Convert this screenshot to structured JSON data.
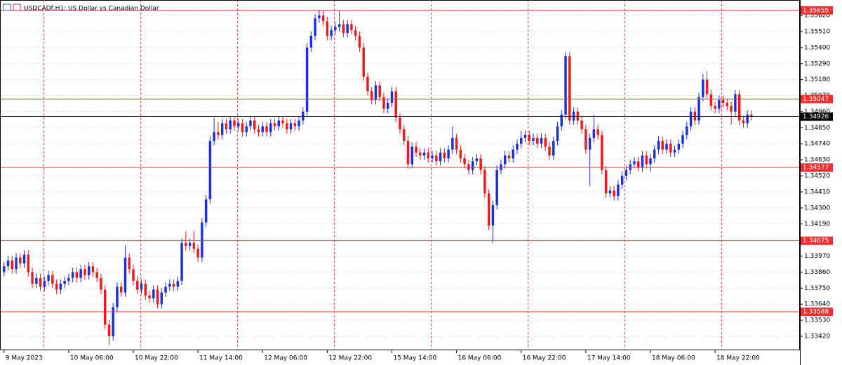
{
  "chart_data": {
    "type": "candlestick",
    "title": "USDCADf,H1:  US Dollar vs Canadian Dollar",
    "up_color": "#1a30e0",
    "down_color": "#f01818",
    "level_color": "#f03030",
    "price_color": "#000000",
    "ylim": [
      1.33324,
      1.35726
    ],
    "xlim": [
      -1,
      197
    ],
    "grid": true,
    "yticks": [
      {
        "value": 1.3562,
        "label": "1.35620"
      },
      {
        "value": 1.3551,
        "label": "1.35510"
      },
      {
        "value": 1.354,
        "label": "1.35400"
      },
      {
        "value": 1.3529,
        "label": "1.35290"
      },
      {
        "value": 1.3518,
        "label": "1.35180"
      },
      {
        "value": 1.3507,
        "label": "1.35070"
      },
      {
        "value": 1.3496,
        "label": "1.34960"
      },
      {
        "value": 1.3485,
        "label": "1.34850"
      },
      {
        "value": 1.3474,
        "label": "1.34740"
      },
      {
        "value": 1.3463,
        "label": "1.34630"
      },
      {
        "value": 1.3452,
        "label": "1.34520"
      },
      {
        "value": 1.3441,
        "label": "1.34410"
      },
      {
        "value": 1.343,
        "label": "1.34300"
      },
      {
        "value": 1.3419,
        "label": "1.34190"
      },
      {
        "value": 1.3408,
        "label": "1.34080"
      },
      {
        "value": 1.3397,
        "label": "1.33970"
      },
      {
        "value": 1.3386,
        "label": "1.33860"
      },
      {
        "value": 1.3375,
        "label": "1.33750"
      },
      {
        "value": 1.3364,
        "label": "1.33640"
      },
      {
        "value": 1.3353,
        "label": "1.33530"
      },
      {
        "value": 1.3342,
        "label": "1.33420"
      }
    ],
    "xticks": [
      {
        "value": 0,
        "label": "9 May 2023"
      },
      {
        "value": 16,
        "label": "10 May 06:00"
      },
      {
        "value": 32,
        "label": "10 May 22:00"
      },
      {
        "value": 48,
        "label": "11 May 14:00"
      },
      {
        "value": 64,
        "label": "12 May 06:00"
      },
      {
        "value": 80,
        "label": "12 May 22:00"
      },
      {
        "value": 96,
        "label": "15 May 14:00"
      },
      {
        "value": 112,
        "label": "16 May 06:00"
      },
      {
        "value": 128,
        "label": "16 May 22:00"
      },
      {
        "value": 144,
        "label": "17 May 14:00"
      },
      {
        "value": 160,
        "label": "18 May 06:00"
      },
      {
        "value": 176,
        "label": "18 May 22:00"
      }
    ],
    "levels": [
      1.35655,
      1.35047,
      1.34577,
      1.34075,
      1.33588
    ],
    "current_price": 1.34926,
    "candles": [
      [
        1.3386,
        1.3393,
        1.3383,
        1.339
      ],
      [
        1.339,
        1.3397,
        1.3387,
        1.3394
      ],
      [
        1.3394,
        1.3397,
        1.3385,
        1.3388
      ],
      [
        1.3388,
        1.3399,
        1.3385,
        1.3396
      ],
      [
        1.3396,
        1.3399,
        1.3389,
        1.3392
      ],
      [
        1.3392,
        1.3401,
        1.3389,
        1.3398
      ],
      [
        1.3398,
        1.3401,
        1.3383,
        1.3386
      ],
      [
        1.3386,
        1.3389,
        1.3375,
        1.3378
      ],
      [
        1.3378,
        1.3385,
        1.3375,
        1.3382
      ],
      [
        1.3382,
        1.3385,
        1.3373,
        1.3376
      ],
      [
        1.3376,
        1.3383,
        1.3373,
        1.338
      ],
      [
        1.338,
        1.3387,
        1.3377,
        1.3384
      ],
      [
        1.3384,
        1.3387,
        1.3375,
        1.3378
      ],
      [
        1.3378,
        1.3381,
        1.3371,
        1.3374
      ],
      [
        1.3374,
        1.3381,
        1.3371,
        1.3378
      ],
      [
        1.3378,
        1.3383,
        1.3375,
        1.338
      ],
      [
        1.338,
        1.3385,
        1.3377,
        1.3382
      ],
      [
        1.3382,
        1.3389,
        1.3379,
        1.3386
      ],
      [
        1.3386,
        1.3389,
        1.3379,
        1.3382
      ],
      [
        1.3382,
        1.3391,
        1.3379,
        1.3388
      ],
      [
        1.3388,
        1.3391,
        1.3381,
        1.3384
      ],
      [
        1.3384,
        1.3393,
        1.3381,
        1.339
      ],
      [
        1.339,
        1.3393,
        1.3383,
        1.3386
      ],
      [
        1.3386,
        1.3389,
        1.3379,
        1.3382
      ],
      [
        1.3382,
        1.3385,
        1.3371,
        1.3374
      ],
      [
        1.3374,
        1.3377,
        1.3347,
        1.335
      ],
      [
        1.335,
        1.3353,
        1.3336,
        1.3342
      ],
      [
        1.3342,
        1.3365,
        1.3339,
        1.3362
      ],
      [
        1.3362,
        1.3379,
        1.3359,
        1.3376
      ],
      [
        1.3376,
        1.3379,
        1.3369,
        1.3372
      ],
      [
        1.3372,
        1.3404,
        1.3369,
        1.3396
      ],
      [
        1.3396,
        1.3399,
        1.3385,
        1.3388
      ],
      [
        1.3388,
        1.3391,
        1.3377,
        1.338
      ],
      [
        1.338,
        1.3383,
        1.3371,
        1.3374
      ],
      [
        1.3374,
        1.3381,
        1.3371,
        1.3378
      ],
      [
        1.3378,
        1.3381,
        1.3367,
        1.337
      ],
      [
        1.337,
        1.3373,
        1.3365,
        1.3368
      ],
      [
        1.3368,
        1.3377,
        1.3365,
        1.3374
      ],
      [
        1.3374,
        1.3377,
        1.3361,
        1.3364
      ],
      [
        1.3364,
        1.3375,
        1.3361,
        1.3372
      ],
      [
        1.3372,
        1.3379,
        1.3369,
        1.3376
      ],
      [
        1.3376,
        1.3381,
        1.3373,
        1.3378
      ],
      [
        1.3378,
        1.3381,
        1.3373,
        1.3376
      ],
      [
        1.3376,
        1.3383,
        1.3373,
        1.338
      ],
      [
        1.338,
        1.3409,
        1.3377,
        1.3406
      ],
      [
        1.3406,
        1.3414,
        1.3401,
        1.3404
      ],
      [
        1.3404,
        1.3409,
        1.3401,
        1.3406
      ],
      [
        1.3406,
        1.3414,
        1.3399,
        1.3402
      ],
      [
        1.3402,
        1.3405,
        1.3393,
        1.3396
      ],
      [
        1.3396,
        1.3423,
        1.3393,
        1.342
      ],
      [
        1.342,
        1.3439,
        1.3417,
        1.3436
      ],
      [
        1.3436,
        1.3479,
        1.3433,
        1.3476
      ],
      [
        1.3476,
        1.3492,
        1.3473,
        1.3482
      ],
      [
        1.3482,
        1.3489,
        1.3477,
        1.348
      ],
      [
        1.348,
        1.3491,
        1.3477,
        1.3488
      ],
      [
        1.3488,
        1.3491,
        1.3481,
        1.3484
      ],
      [
        1.3484,
        1.3493,
        1.3481,
        1.349
      ],
      [
        1.349,
        1.3493,
        1.3483,
        1.3486
      ],
      [
        1.3486,
        1.3491,
        1.3483,
        1.3488
      ],
      [
        1.3488,
        1.3491,
        1.3479,
        1.3482
      ],
      [
        1.3482,
        1.3489,
        1.3479,
        1.3486
      ],
      [
        1.3486,
        1.3493,
        1.3483,
        1.349
      ],
      [
        1.349,
        1.3493,
        1.3481,
        1.3484
      ],
      [
        1.3484,
        1.3487,
        1.3479,
        1.3482
      ],
      [
        1.3482,
        1.3489,
        1.3479,
        1.3486
      ],
      [
        1.3486,
        1.3489,
        1.3479,
        1.3482
      ],
      [
        1.3482,
        1.3491,
        1.3479,
        1.3488
      ],
      [
        1.3488,
        1.3491,
        1.3483,
        1.3486
      ],
      [
        1.3486,
        1.3493,
        1.3483,
        1.349
      ],
      [
        1.349,
        1.3493,
        1.3485,
        1.3488
      ],
      [
        1.3488,
        1.3491,
        1.3481,
        1.3484
      ],
      [
        1.3484,
        1.3491,
        1.3481,
        1.3488
      ],
      [
        1.3488,
        1.3491,
        1.3483,
        1.3486
      ],
      [
        1.3486,
        1.3493,
        1.3483,
        1.349
      ],
      [
        1.349,
        1.3499,
        1.3487,
        1.3496
      ],
      [
        1.3496,
        1.3543,
        1.3493,
        1.354
      ],
      [
        1.354,
        1.3551,
        1.3537,
        1.3548
      ],
      [
        1.3548,
        1.3563,
        1.3545,
        1.356
      ],
      [
        1.356,
        1.3566,
        1.3557,
        1.3562
      ],
      [
        1.3562,
        1.3565,
        1.3555,
        1.3558
      ],
      [
        1.3558,
        1.3561,
        1.3545,
        1.3548
      ],
      [
        1.3548,
        1.3555,
        1.3545,
        1.3552
      ],
      [
        1.3552,
        1.3557,
        1.3549,
        1.3554
      ],
      [
        1.3554,
        1.3565,
        1.3551,
        1.3556
      ],
      [
        1.3556,
        1.3559,
        1.3547,
        1.355
      ],
      [
        1.355,
        1.3559,
        1.3547,
        1.3556
      ],
      [
        1.3556,
        1.3559,
        1.3549,
        1.3552
      ],
      [
        1.3552,
        1.3555,
        1.3545,
        1.3548
      ],
      [
        1.3548,
        1.3551,
        1.3537,
        1.354
      ],
      [
        1.354,
        1.3543,
        1.3517,
        1.352
      ],
      [
        1.352,
        1.3523,
        1.3507,
        1.351
      ],
      [
        1.351,
        1.3513,
        1.3501,
        1.3504
      ],
      [
        1.3504,
        1.3517,
        1.3501,
        1.3514
      ],
      [
        1.3514,
        1.3517,
        1.3503,
        1.3506
      ],
      [
        1.3506,
        1.3509,
        1.3495,
        1.3498
      ],
      [
        1.3498,
        1.3505,
        1.3495,
        1.3502
      ],
      [
        1.3502,
        1.3513,
        1.3499,
        1.351
      ],
      [
        1.351,
        1.3513,
        1.3489,
        1.3492
      ],
      [
        1.3492,
        1.3495,
        1.3481,
        1.3484
      ],
      [
        1.3484,
        1.3487,
        1.3473,
        1.3476
      ],
      [
        1.3476,
        1.3479,
        1.3457,
        1.346
      ],
      [
        1.346,
        1.3475,
        1.3457,
        1.3472
      ],
      [
        1.3472,
        1.3475,
        1.3465,
        1.3468
      ],
      [
        1.3468,
        1.3471,
        1.3463,
        1.3466
      ],
      [
        1.3466,
        1.3471,
        1.3463,
        1.3468
      ],
      [
        1.3468,
        1.3471,
        1.3461,
        1.3464
      ],
      [
        1.3464,
        1.3469,
        1.3461,
        1.3466
      ],
      [
        1.3466,
        1.3469,
        1.3459,
        1.3462
      ],
      [
        1.3462,
        1.3471,
        1.3459,
        1.3468
      ],
      [
        1.3468,
        1.3471,
        1.3461,
        1.3464
      ],
      [
        1.3464,
        1.3473,
        1.3461,
        1.347
      ],
      [
        1.347,
        1.3486,
        1.3467,
        1.3478
      ],
      [
        1.3478,
        1.3481,
        1.3467,
        1.347
      ],
      [
        1.347,
        1.3473,
        1.3461,
        1.3464
      ],
      [
        1.3464,
        1.3467,
        1.3457,
        1.346
      ],
      [
        1.346,
        1.3463,
        1.3453,
        1.3456
      ],
      [
        1.3456,
        1.3465,
        1.3453,
        1.3462
      ],
      [
        1.3462,
        1.3467,
        1.3459,
        1.3464
      ],
      [
        1.3464,
        1.3467,
        1.3453,
        1.3456
      ],
      [
        1.3456,
        1.3459,
        1.3437,
        1.344
      ],
      [
        1.344,
        1.3443,
        1.3415,
        1.3418
      ],
      [
        1.3418,
        1.3435,
        1.3406,
        1.3432
      ],
      [
        1.3432,
        1.3459,
        1.3429,
        1.3456
      ],
      [
        1.3456,
        1.3463,
        1.3453,
        1.346
      ],
      [
        1.346,
        1.3469,
        1.3457,
        1.3466
      ],
      [
        1.3466,
        1.3469,
        1.3461,
        1.3464
      ],
      [
        1.3464,
        1.3473,
        1.3461,
        1.347
      ],
      [
        1.347,
        1.3477,
        1.3467,
        1.3474
      ],
      [
        1.3474,
        1.3483,
        1.3471,
        1.3478
      ],
      [
        1.3478,
        1.3483,
        1.3475,
        1.348
      ],
      [
        1.348,
        1.3483,
        1.3473,
        1.3476
      ],
      [
        1.3476,
        1.3481,
        1.3473,
        1.3478
      ],
      [
        1.3478,
        1.3481,
        1.3471,
        1.3474
      ],
      [
        1.3474,
        1.3481,
        1.3471,
        1.3478
      ],
      [
        1.3478,
        1.3481,
        1.3469,
        1.3472
      ],
      [
        1.3472,
        1.3475,
        1.3463,
        1.3466
      ],
      [
        1.3466,
        1.3479,
        1.3463,
        1.3476
      ],
      [
        1.3476,
        1.3489,
        1.3473,
        1.3486
      ],
      [
        1.3486,
        1.3497,
        1.3483,
        1.3494
      ],
      [
        1.3494,
        1.3537,
        1.3491,
        1.3534
      ],
      [
        1.3534,
        1.3537,
        1.3487,
        1.349
      ],
      [
        1.349,
        1.3499,
        1.3487,
        1.3496
      ],
      [
        1.3496,
        1.3499,
        1.3487,
        1.349
      ],
      [
        1.349,
        1.3493,
        1.3481,
        1.3484
      ],
      [
        1.3484,
        1.3487,
        1.3467,
        1.347
      ],
      [
        1.347,
        1.3481,
        1.3445,
        1.3478
      ],
      [
        1.3478,
        1.3494,
        1.3475,
        1.3484
      ],
      [
        1.3484,
        1.3487,
        1.3477,
        1.348
      ],
      [
        1.348,
        1.3483,
        1.3453,
        1.3456
      ],
      [
        1.3456,
        1.3459,
        1.3437,
        1.344
      ],
      [
        1.344,
        1.3445,
        1.3437,
        1.3442
      ],
      [
        1.3442,
        1.3445,
        1.3435,
        1.3438
      ],
      [
        1.3438,
        1.3449,
        1.3435,
        1.3446
      ],
      [
        1.3446,
        1.3455,
        1.3443,
        1.3452
      ],
      [
        1.3452,
        1.3459,
        1.3449,
        1.3456
      ],
      [
        1.3456,
        1.3463,
        1.3453,
        1.346
      ],
      [
        1.346,
        1.3465,
        1.3457,
        1.3462
      ],
      [
        1.3462,
        1.3465,
        1.3455,
        1.3458
      ],
      [
        1.3458,
        1.3469,
        1.3455,
        1.3466
      ],
      [
        1.3466,
        1.3469,
        1.3457,
        1.346
      ],
      [
        1.346,
        1.3467,
        1.3455,
        1.3464
      ],
      [
        1.3464,
        1.3473,
        1.3461,
        1.347
      ],
      [
        1.347,
        1.3479,
        1.3467,
        1.3476
      ],
      [
        1.3476,
        1.3479,
        1.3467,
        1.347
      ],
      [
        1.347,
        1.3477,
        1.3467,
        1.3474
      ],
      [
        1.3474,
        1.3477,
        1.3465,
        1.3468
      ],
      [
        1.3468,
        1.3473,
        1.3465,
        1.347
      ],
      [
        1.347,
        1.3477,
        1.3467,
        1.3474
      ],
      [
        1.3474,
        1.3483,
        1.3471,
        1.348
      ],
      [
        1.348,
        1.3489,
        1.3477,
        1.3486
      ],
      [
        1.3486,
        1.3499,
        1.3483,
        1.3496
      ],
      [
        1.3496,
        1.3499,
        1.3487,
        1.349
      ],
      [
        1.349,
        1.3509,
        1.3487,
        1.3506
      ],
      [
        1.3506,
        1.3522,
        1.3503,
        1.3518
      ],
      [
        1.3518,
        1.3524,
        1.3505,
        1.3508
      ],
      [
        1.3508,
        1.3511,
        1.3497,
        1.35
      ],
      [
        1.35,
        1.3503,
        1.3495,
        1.3498
      ],
      [
        1.3498,
        1.3507,
        1.3495,
        1.3504
      ],
      [
        1.3504,
        1.3507,
        1.3499,
        1.3502
      ],
      [
        1.3502,
        1.3505,
        1.3497,
        1.35
      ],
      [
        1.35,
        1.3503,
        1.3487,
        1.3496
      ],
      [
        1.3496,
        1.3511,
        1.3493,
        1.3508
      ],
      [
        1.3508,
        1.3511,
        1.3487,
        1.349
      ],
      [
        1.349,
        1.3493,
        1.3485,
        1.3488
      ],
      [
        1.3488,
        1.3497,
        1.3485,
        1.3494
      ],
      [
        1.3494,
        1.3497,
        1.349,
        1.34926
      ]
    ]
  }
}
